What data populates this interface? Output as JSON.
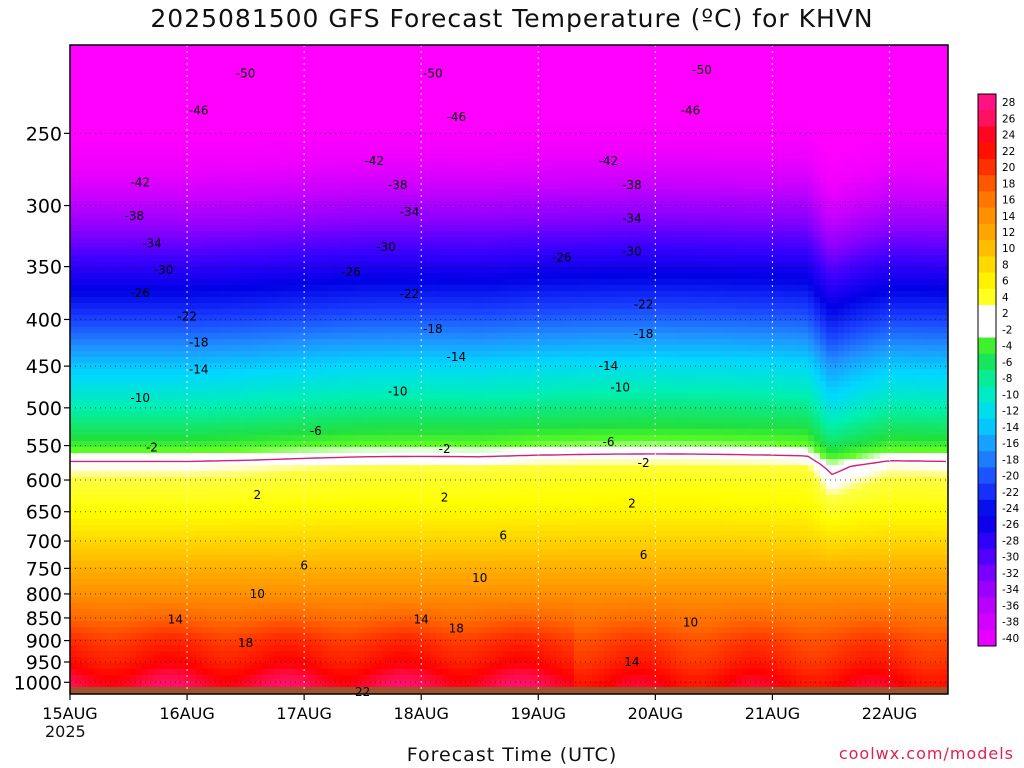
{
  "chart_data": {
    "type": "heatmap",
    "title": "2025081500 GFS Forecast Temperature (ºC) for KHVN",
    "xlabel": "Forecast Time (UTC)",
    "ylabel": "",
    "x_tick_labels": [
      "15AUG",
      "16AUG",
      "17AUG",
      "18AUG",
      "19AUG",
      "20AUG",
      "21AUG",
      "22AUG"
    ],
    "x_first_tick_year": "2025",
    "x_range_days": [
      0,
      7.5
    ],
    "y_axis": "pressure (hPa), log scale, inverted",
    "y_tick_labels": [
      250,
      300,
      350,
      400,
      450,
      500,
      550,
      600,
      650,
      700,
      750,
      800,
      850,
      900,
      950,
      1000
    ],
    "y_range": [
      200,
      1030
    ],
    "grid": true,
    "colorbar": {
      "placement": "right",
      "ticks": [
        28,
        26,
        24,
        22,
        20,
        18,
        16,
        14,
        12,
        10,
        8,
        6,
        4,
        2,
        -2,
        -4,
        -6,
        -8,
        -10,
        -12,
        -14,
        -16,
        -18,
        -20,
        -22,
        -24,
        -26,
        -28,
        -30,
        -32,
        -34,
        -36,
        -38,
        -40
      ]
    },
    "isotherm_values": [
      -50,
      -46,
      -42,
      -38,
      -34,
      -30,
      -26,
      -22,
      -18,
      -14,
      -10,
      -6,
      -2,
      2,
      6,
      10,
      14,
      18,
      22
    ],
    "profile": {
      "pressure": [
        200,
        250,
        300,
        350,
        400,
        450,
        500,
        550,
        580,
        600,
        650,
        700,
        750,
        800,
        850,
        900,
        950,
        1000
      ],
      "temperature": [
        -52,
        -44,
        -35,
        -27,
        -20,
        -13,
        -8,
        -3,
        1,
        2,
        4,
        7,
        10,
        13,
        16,
        19,
        21,
        24
      ]
    },
    "time_shift_samples": {
      "day": [
        0,
        0.5,
        1,
        1.5,
        2,
        2.5,
        3,
        3.5,
        4,
        4.5,
        5,
        5.5,
        6,
        6.3,
        6.5,
        6.7,
        7,
        7.5
      ],
      "shift": [
        0,
        0,
        0,
        0.3,
        0.8,
        1.2,
        1.3,
        1.2,
        1.6,
        1.8,
        1.9,
        1.8,
        1.6,
        1.4,
        -2.5,
        -1.2,
        0.2,
        0
      ]
    },
    "labeled_isotherms": [
      {
        "label": "-50",
        "day": 1.5,
        "p": 215
      },
      {
        "label": "-50",
        "day": 3.1,
        "p": 215
      },
      {
        "label": "-50",
        "day": 5.4,
        "p": 213
      },
      {
        "label": "-46",
        "day": 1.1,
        "p": 236
      },
      {
        "label": "-46",
        "day": 3.3,
        "p": 240
      },
      {
        "label": "-46",
        "day": 5.3,
        "p": 236
      },
      {
        "label": "-42",
        "day": 0.6,
        "p": 283
      },
      {
        "label": "-42",
        "day": 2.6,
        "p": 268
      },
      {
        "label": "-42",
        "day": 4.6,
        "p": 268
      },
      {
        "label": "-38",
        "day": 0.55,
        "p": 308
      },
      {
        "label": "-38",
        "day": 2.8,
        "p": 285
      },
      {
        "label": "-38",
        "day": 4.8,
        "p": 285
      },
      {
        "label": "-34",
        "day": 0.7,
        "p": 330
      },
      {
        "label": "-34",
        "day": 2.9,
        "p": 305
      },
      {
        "label": "-34",
        "day": 4.8,
        "p": 310
      },
      {
        "label": "-30",
        "day": 0.8,
        "p": 353
      },
      {
        "label": "-30",
        "day": 2.7,
        "p": 333
      },
      {
        "label": "-30",
        "day": 4.8,
        "p": 337
      },
      {
        "label": "-26",
        "day": 0.6,
        "p": 374
      },
      {
        "label": "-26",
        "day": 2.4,
        "p": 355
      },
      {
        "label": "-26",
        "day": 4.2,
        "p": 342
      },
      {
        "label": "-22",
        "day": 1.0,
        "p": 397
      },
      {
        "label": "-22",
        "day": 2.9,
        "p": 375
      },
      {
        "label": "-22",
        "day": 4.9,
        "p": 385
      },
      {
        "label": "-18",
        "day": 1.1,
        "p": 424
      },
      {
        "label": "-18",
        "day": 3.1,
        "p": 410
      },
      {
        "label": "-18",
        "day": 4.9,
        "p": 415
      },
      {
        "label": "-14",
        "day": 1.1,
        "p": 454
      },
      {
        "label": "-14",
        "day": 3.3,
        "p": 440
      },
      {
        "label": "-14",
        "day": 4.6,
        "p": 450
      },
      {
        "label": "-10",
        "day": 0.6,
        "p": 488
      },
      {
        "label": "-10",
        "day": 2.8,
        "p": 480
      },
      {
        "label": "-10",
        "day": 4.7,
        "p": 475
      },
      {
        "label": "-6",
        "day": 2.1,
        "p": 530
      },
      {
        "label": "-6",
        "day": 4.6,
        "p": 545
      },
      {
        "label": "-2",
        "day": 0.7,
        "p": 553
      },
      {
        "label": "-2",
        "day": 3.2,
        "p": 555
      },
      {
        "label": "-2",
        "day": 4.9,
        "p": 575
      },
      {
        "label": "2",
        "day": 1.6,
        "p": 623
      },
      {
        "label": "2",
        "day": 3.2,
        "p": 627
      },
      {
        "label": "2",
        "day": 4.8,
        "p": 637
      },
      {
        "label": "6",
        "day": 2.0,
        "p": 745
      },
      {
        "label": "6",
        "day": 3.7,
        "p": 690
      },
      {
        "label": "6",
        "day": 4.9,
        "p": 725
      },
      {
        "label": "10",
        "day": 1.6,
        "p": 800
      },
      {
        "label": "10",
        "day": 3.5,
        "p": 768
      },
      {
        "label": "10",
        "day": 5.3,
        "p": 860
      },
      {
        "label": "14",
        "day": 0.9,
        "p": 853
      },
      {
        "label": "14",
        "day": 3.0,
        "p": 853
      },
      {
        "label": "14",
        "day": 4.8,
        "p": 950
      },
      {
        "label": "18",
        "day": 1.5,
        "p": 905
      },
      {
        "label": "18",
        "day": 3.3,
        "p": 873
      },
      {
        "label": "22",
        "day": 2.5,
        "p": 1025
      }
    ],
    "surface_band_color": "#a0522d",
    "freezing_line_color": "#d0207a"
  },
  "credit": "coolwx.com/models"
}
